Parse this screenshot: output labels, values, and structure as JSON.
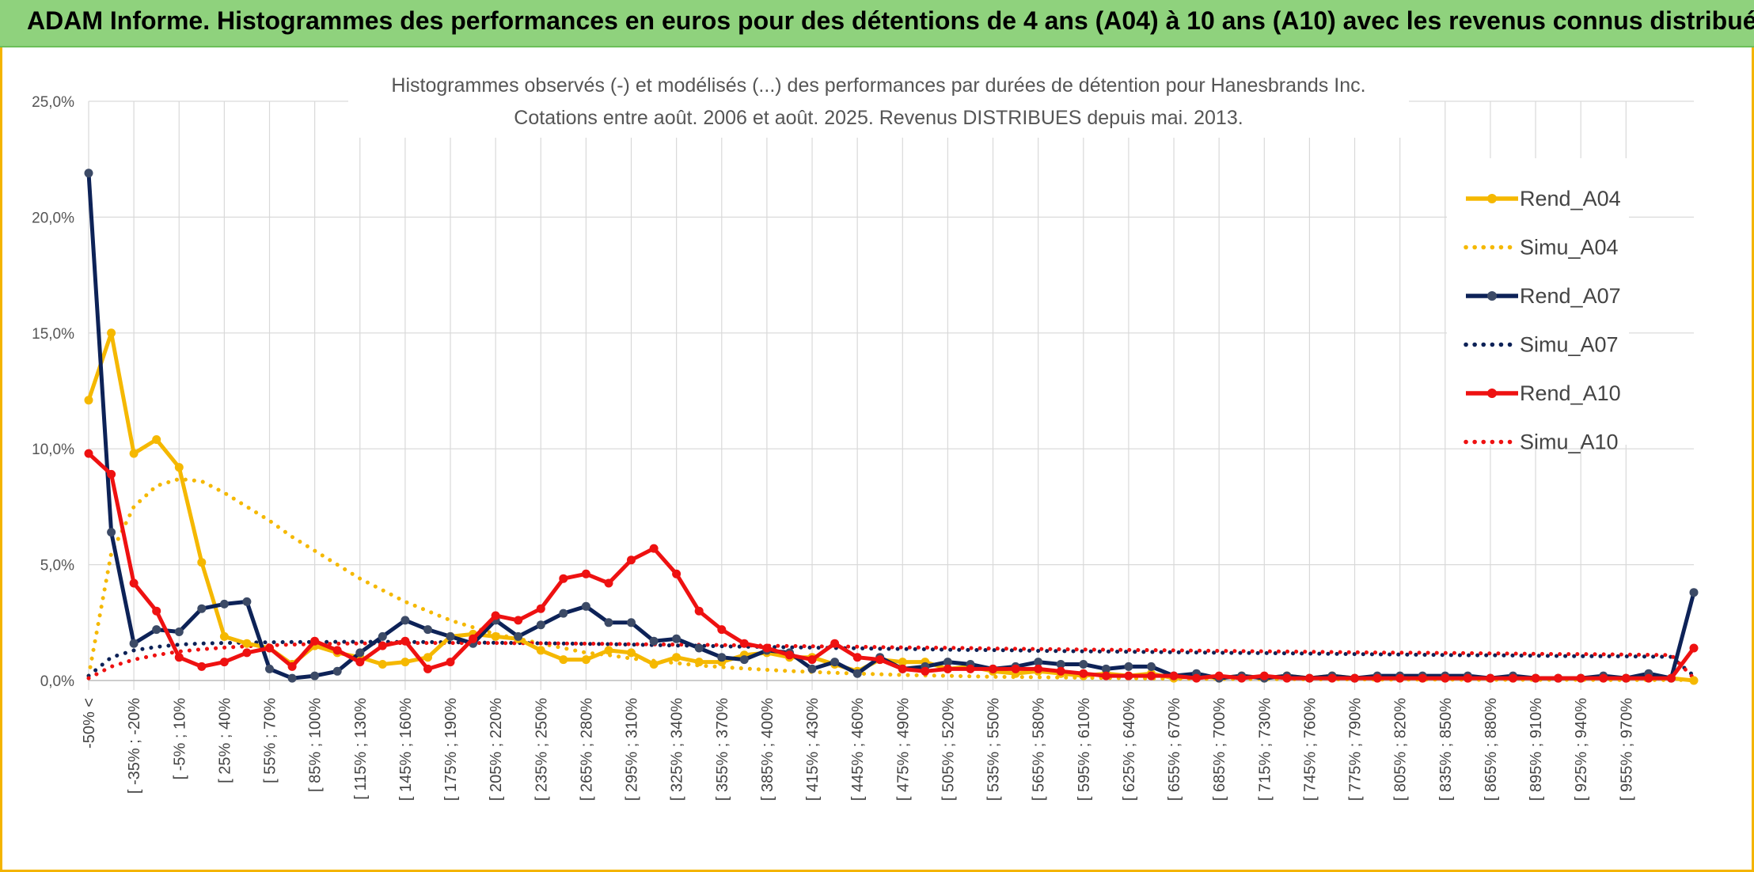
{
  "banner": {
    "title": "ADAM Informe. Histogrammes des performances en euros pour des détentions de 4 ans (A04) à 10 ans (A10) avec les revenus connus distribués"
  },
  "colors": {
    "banner_bg": "#8fd27d",
    "border": "#f4b400",
    "a04": "#f5b800",
    "a07": "#0d2257",
    "a10": "#ee1111",
    "grid": "#d9d9d9"
  },
  "chart_data": {
    "type": "line",
    "title": "Histogrammes observés (-) et modélisés (...) des performances par durées de détention pour Hanesbrands Inc.",
    "subtitle": "Cotations entre août. 2006 et août. 2025. Revenus DISTRIBUES depuis mai. 2013.",
    "ylim": [
      0,
      25
    ],
    "y_ticks": [
      "0,0%",
      "5,0%",
      "10,0%",
      "15,0%",
      "20,0%",
      "25,0%"
    ],
    "grid": true,
    "legend_position": "right",
    "x_tick_labels": [
      "-50% <",
      "[ -35% ; -20%",
      "[ -5% ; 10%",
      "[ 25% ; 40%",
      "[ 55% ; 70%",
      "[ 85% ; 100%",
      "[ 115% ; 130%",
      "[ 145% ; 160%",
      "[ 175% ; 190%",
      "[ 205% ; 220%",
      "[ 235% ; 250%",
      "[ 265% ; 280%",
      "[ 295% ; 310%",
      "[ 325% ; 340%",
      "[ 355% ; 370%",
      "[ 385% ; 400%",
      "[ 415% ; 430%",
      "[ 445% ; 460%",
      "[ 475% ; 490%",
      "[ 505% ; 520%",
      "[ 535% ; 550%",
      "[ 565% ; 580%",
      "[ 595% ; 610%",
      "[ 625% ; 640%",
      "[ 655% ; 670%",
      "[ 685% ; 700%",
      "[ 715% ; 730%",
      "[ 745% ; 760%",
      "[ 775% ; 790%",
      "[ 805% ; 820%",
      "[ 835% ; 850%",
      "[ 865% ; 880%",
      "[ 895% ; 910%",
      "[ 925% ; 940%",
      "[ 955% ; 970%"
    ],
    "series": [
      {
        "name": "Rend_A04",
        "style": "solid",
        "color": "#f5b800",
        "values": [
          12.1,
          15.0,
          9.8,
          10.4,
          9.2,
          5.1,
          1.9,
          1.6,
          1.4,
          0.7,
          1.5,
          1.2,
          1.0,
          0.7,
          0.8,
          1.0,
          1.9,
          2.0,
          1.9,
          1.8,
          1.3,
          0.9,
          0.9,
          1.3,
          1.2,
          0.7,
          1.0,
          0.8,
          0.8,
          1.1,
          1.2,
          1.0,
          1.0,
          0.7,
          0.4,
          0.9,
          0.8,
          0.8,
          0.5,
          0.6,
          0.4,
          0.3,
          0.4,
          0.3,
          0.2,
          0.3,
          0.2,
          0.3,
          0.1,
          0.2,
          0.1,
          0.2,
          0.1,
          0.2,
          0.1,
          0.2,
          0.1,
          0.1,
          0.1,
          0.1,
          0.1,
          0.1,
          0.1,
          0.1,
          0.1,
          0.1,
          0.1,
          0.1,
          0.1,
          0.1,
          0.1,
          0.0
        ]
      },
      {
        "name": "Simu_A04",
        "style": "dotted",
        "color": "#f5b800",
        "values": [
          0.2,
          5.5,
          7.5,
          8.4,
          8.7,
          8.6,
          8.1,
          7.5,
          6.9,
          6.2,
          5.6,
          5.0,
          4.4,
          3.9,
          3.4,
          3.0,
          2.6,
          2.3,
          2.0,
          1.8,
          1.6,
          1.4,
          1.2,
          1.1,
          0.95,
          0.85,
          0.75,
          0.65,
          0.58,
          0.52,
          0.46,
          0.41,
          0.37,
          0.33,
          0.3,
          0.27,
          0.24,
          0.22,
          0.2,
          0.18,
          0.16,
          0.15,
          0.14,
          0.13,
          0.12,
          0.11,
          0.1,
          0.09,
          0.08,
          0.08,
          0.07,
          0.07,
          0.06,
          0.06,
          0.05,
          0.05,
          0.05,
          0.04,
          0.04,
          0.04,
          0.04,
          0.03,
          0.03,
          0.03,
          0.03,
          0.03,
          0.03,
          0.02,
          0.02,
          0.02,
          0.02,
          0.02
        ]
      },
      {
        "name": "Rend_A07",
        "style": "solid",
        "color": "#0d2257",
        "values": [
          21.9,
          6.4,
          1.6,
          2.2,
          2.1,
          3.1,
          3.3,
          3.4,
          0.5,
          0.1,
          0.2,
          0.4,
          1.2,
          1.9,
          2.6,
          2.2,
          1.9,
          1.6,
          2.6,
          1.9,
          2.4,
          2.9,
          3.2,
          2.5,
          2.5,
          1.7,
          1.8,
          1.4,
          1.0,
          0.9,
          1.3,
          1.2,
          0.5,
          0.8,
          0.3,
          1.0,
          0.5,
          0.6,
          0.8,
          0.7,
          0.5,
          0.6,
          0.8,
          0.7,
          0.7,
          0.5,
          0.6,
          0.6,
          0.2,
          0.3,
          0.1,
          0.2,
          0.1,
          0.2,
          0.1,
          0.2,
          0.1,
          0.2,
          0.2,
          0.2,
          0.2,
          0.2,
          0.1,
          0.2,
          0.1,
          0.1,
          0.1,
          0.2,
          0.1,
          0.3,
          0.1,
          3.8
        ]
      },
      {
        "name": "Simu_A07",
        "style": "dotted",
        "color": "#0d2257",
        "values": [
          0.2,
          1.0,
          1.3,
          1.45,
          1.55,
          1.6,
          1.62,
          1.64,
          1.65,
          1.66,
          1.66,
          1.67,
          1.67,
          1.67,
          1.66,
          1.66,
          1.65,
          1.64,
          1.63,
          1.62,
          1.61,
          1.6,
          1.58,
          1.57,
          1.55,
          1.53,
          1.51,
          1.5,
          1.48,
          1.46,
          1.45,
          1.43,
          1.42,
          1.4,
          1.39,
          1.37,
          1.36,
          1.35,
          1.33,
          1.32,
          1.31,
          1.3,
          1.28,
          1.27,
          1.26,
          1.25,
          1.24,
          1.23,
          1.22,
          1.21,
          1.2,
          1.19,
          1.18,
          1.17,
          1.16,
          1.15,
          1.14,
          1.13,
          1.12,
          1.11,
          1.1,
          1.09,
          1.09,
          1.08,
          1.07,
          1.06,
          1.05,
          1.05,
          1.04,
          1.03,
          1.02,
          0.2
        ]
      },
      {
        "name": "Rend_A10",
        "style": "solid",
        "color": "#ee1111",
        "values": [
          9.8,
          8.9,
          4.2,
          3.0,
          1.0,
          0.6,
          0.8,
          1.2,
          1.4,
          0.6,
          1.7,
          1.3,
          0.8,
          1.5,
          1.7,
          0.5,
          0.8,
          1.8,
          2.8,
          2.6,
          3.1,
          4.4,
          4.6,
          4.2,
          5.2,
          5.7,
          4.6,
          3.0,
          2.2,
          1.6,
          1.4,
          1.1,
          0.9,
          1.6,
          1.0,
          0.9,
          0.5,
          0.4,
          0.5,
          0.5,
          0.5,
          0.5,
          0.5,
          0.4,
          0.3,
          0.2,
          0.2,
          0.2,
          0.2,
          0.1,
          0.2,
          0.1,
          0.2,
          0.1,
          0.1,
          0.1,
          0.1,
          0.1,
          0.1,
          0.1,
          0.1,
          0.1,
          0.1,
          0.1,
          0.1,
          0.1,
          0.1,
          0.1,
          0.1,
          0.1,
          0.1,
          1.4
        ]
      },
      {
        "name": "Simu_A10",
        "style": "dotted",
        "color": "#ee1111",
        "values": [
          0.1,
          0.6,
          0.9,
          1.1,
          1.25,
          1.35,
          1.42,
          1.48,
          1.52,
          1.55,
          1.57,
          1.59,
          1.6,
          1.61,
          1.62,
          1.62,
          1.62,
          1.62,
          1.62,
          1.61,
          1.61,
          1.6,
          1.59,
          1.58,
          1.57,
          1.56,
          1.55,
          1.54,
          1.53,
          1.52,
          1.5,
          1.49,
          1.48,
          1.47,
          1.46,
          1.44,
          1.43,
          1.42,
          1.41,
          1.4,
          1.38,
          1.37,
          1.36,
          1.35,
          1.34,
          1.33,
          1.32,
          1.31,
          1.3,
          1.29,
          1.28,
          1.27,
          1.26,
          1.25,
          1.24,
          1.23,
          1.22,
          1.21,
          1.2,
          1.2,
          1.19,
          1.18,
          1.17,
          1.16,
          1.15,
          1.14,
          1.14,
          1.13,
          1.12,
          1.11,
          1.1,
          0.1
        ]
      }
    ]
  }
}
